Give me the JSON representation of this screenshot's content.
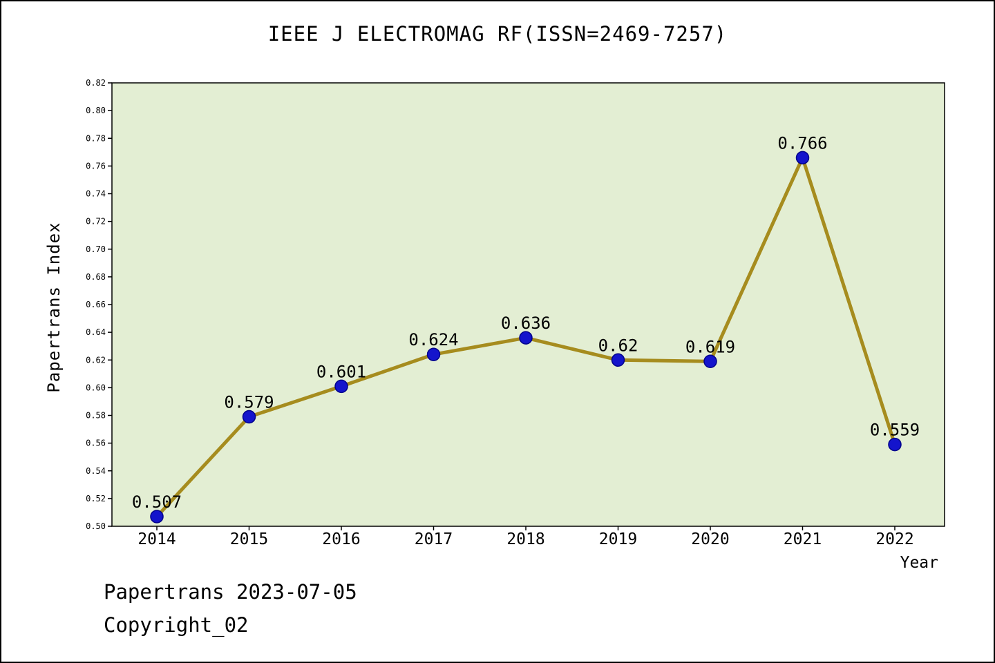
{
  "title": "IEEE J ELECTROMAG RF(ISSN=2469-7257)",
  "footer": {
    "line1": "Papertrans 2023-07-05",
    "line2": "Copyright_02"
  },
  "chart_data": {
    "type": "line",
    "title": "IEEE J ELECTROMAG RF(ISSN=2469-7257)",
    "xlabel": "Year",
    "ylabel": "Papertrans Index",
    "x": [
      2014,
      2015,
      2016,
      2017,
      2018,
      2019,
      2020,
      2021,
      2022
    ],
    "values": [
      0.507,
      0.579,
      0.601,
      0.624,
      0.636,
      0.62,
      0.619,
      0.766,
      0.559
    ],
    "point_labels": [
      "0.507",
      "0.579",
      "0.601",
      "0.624",
      "0.636",
      "0.62",
      "0.619",
      "0.766",
      "0.559"
    ],
    "ylim": [
      0.5,
      0.82
    ],
    "ytick_step": 0.02,
    "grid": false,
    "legend": "none",
    "colors": {
      "plot_bg": "#e3eed3",
      "line": "#a68c1e",
      "marker": "#1414cc",
      "marker_edge": "#00008b",
      "axis": "#000000"
    }
  }
}
